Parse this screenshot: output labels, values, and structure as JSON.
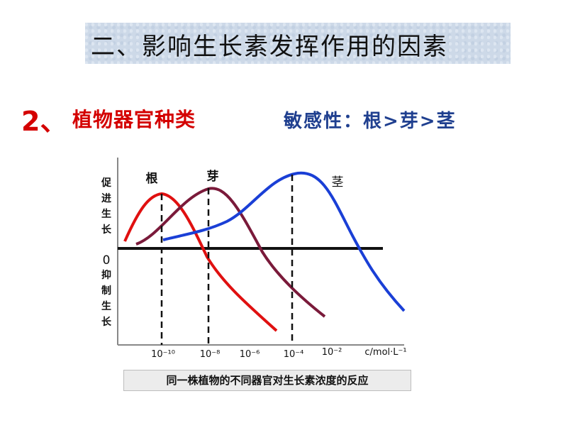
{
  "title": "二、影响生长素发挥作用的因素",
  "heading": {
    "number": "2、",
    "text": "植物器官种类",
    "sensitivity": "敏感性：根>芽>茎"
  },
  "chart_data": {
    "type": "line",
    "y_labels": {
      "promote": "促进生长",
      "zero": "0",
      "inhibit": "抑制生长"
    },
    "x_unit": "c/mol·L⁻¹",
    "x_ticks": [
      "10⁻¹⁰",
      "10⁻⁸",
      "10⁻⁶",
      "10⁻⁴",
      "10⁻²"
    ],
    "series": [
      {
        "name": "根",
        "color": "#e01010",
        "optimum": "10⁻¹⁰"
      },
      {
        "name": "芽",
        "color": "#7a1a3a",
        "optimum": "10⁻⁸"
      },
      {
        "name": "茎",
        "color": "#1a3fd6",
        "optimum": "10⁻⁴"
      }
    ]
  },
  "caption": "同一株植物的不同器官对生长素浓度的反应"
}
